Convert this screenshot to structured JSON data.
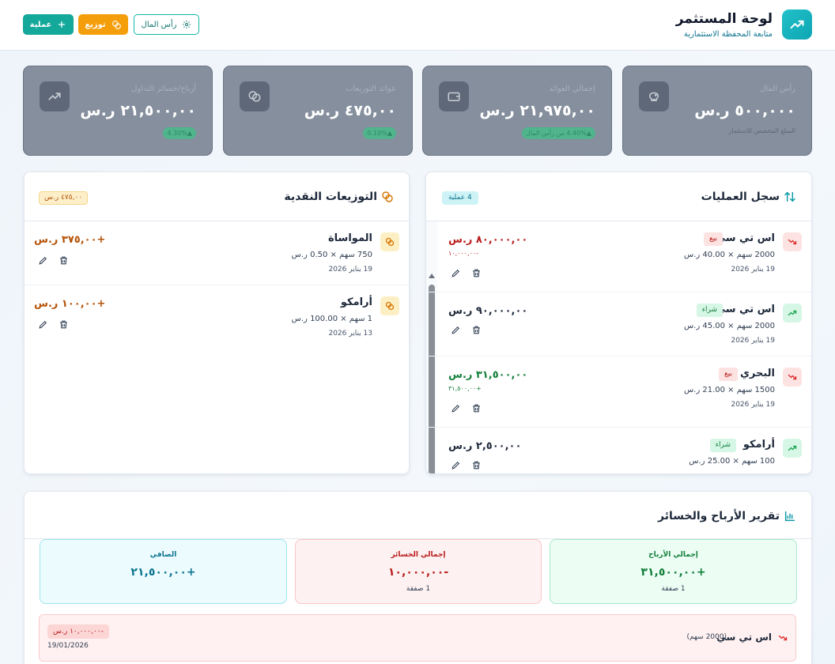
{
  "header": {
    "title": "لوحة المستثمر",
    "subtitle": "متابعة المحفظة الاستثمارية",
    "buttons": {
      "operation": "عملية",
      "distribution": "توزيع",
      "capital": "رأس المال"
    }
  },
  "stats": [
    {
      "label": "رأس المال",
      "value": "٥٠٠,٠٠٠ ر.س",
      "note": "المبلغ المخصص للاستثمار",
      "icon": "piggy-bank-icon"
    },
    {
      "label": "إجمالي العوائد",
      "value": "٢١,٩٧٥,٠٠ ر.س",
      "pill": "▲4.40% من رأس المال",
      "icon": "wallet-icon"
    },
    {
      "label": "عوائد التوزيعات",
      "value": "٤٧٥,٠٠ ر.س",
      "pill": "▲0.10%",
      "icon": "coins-icon"
    },
    {
      "label": "أرباح/خسائر التداول",
      "value": "٢١,٥٠٠,٠٠ ر.س",
      "pill": "▲4.30%",
      "icon": "trend-up-icon"
    }
  ],
  "operations": {
    "title": "سجل العمليات",
    "count": "4 عملية",
    "items": [
      {
        "name": "اس تي سي",
        "type": "بيع",
        "detail": "2000 سهم × 40.00 ر.س",
        "date": "19 يناير 2026",
        "amount": "٨٠,٠٠٠,٠٠ ر.س",
        "sub": "-١٠,٠٠٠,٠٠"
      },
      {
        "name": "اس تي سي",
        "type": "شراء",
        "detail": "2000 سهم × 45.00 ر.س",
        "date": "19 يناير 2026",
        "amount": "٩٠,٠٠٠,٠٠ ر.س",
        "sub": ""
      },
      {
        "name": "البحري",
        "type": "بيع",
        "detail": "1500 سهم × 21.00 ر.س",
        "date": "19 يناير 2026",
        "amount": "٣١,٥٠٠,٠٠ ر.س",
        "sub": "+٣١,٥٠٠,٠٠"
      },
      {
        "name": "أرامكو",
        "type": "شراء",
        "detail": "100 سهم × 25.00 ر.س",
        "date": "",
        "amount": "٢,٥٠٠,٠٠ ر.س",
        "sub": ""
      }
    ]
  },
  "distributions": {
    "title": "التوزيعات النقدية",
    "total": "٤٧٥,٠٠ ر.س",
    "items": [
      {
        "name": "المواساة",
        "detail": "750 سهم × 0.50 ر.س",
        "date": "19 يناير 2026",
        "amount": "+٣٧٥,٠٠ ر.س"
      },
      {
        "name": "أرامكو",
        "detail": "1 سهم × 100.00 ر.س",
        "date": "13 يناير 2026",
        "amount": "+١٠٠,٠٠ ر.س"
      }
    ]
  },
  "report": {
    "title": "تقرير الأرباح والخسائر",
    "profits": {
      "label": "إجمالي الأرباح",
      "value": "+٣١,٥٠٠,٠٠",
      "count": "1 صفقة"
    },
    "losses": {
      "label": "إجمالي الخسائر",
      "value": "-١٠,٠٠٠,٠٠",
      "count": "1 صفقة"
    },
    "net": {
      "label": "الصافي",
      "value": "+٢١,٥٠٠,٠٠"
    },
    "deal": {
      "name": "اس تي سي",
      "shares": "(2000 سهم)",
      "amount": "-١٠,٠٠٠,٠٠ ر.س",
      "date": "19/01/2026"
    }
  },
  "colors": {
    "accent": "#14a89a",
    "amber": "#f59e0b",
    "loss": "#b91c1c",
    "gain": "#15803d"
  }
}
